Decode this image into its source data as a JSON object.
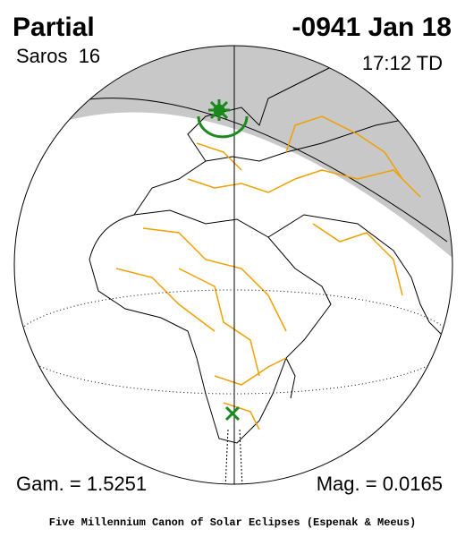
{
  "header": {
    "type": "Partial",
    "date": "-0941 Jan 18",
    "saros": "Saros  16",
    "time": "17:12 TD"
  },
  "footer": {
    "gamma": "Gam. = 1.5251",
    "magnitude": "Mag. = 0.0165",
    "credit": "Five Millennium Canon of Solar Eclipses (Espenak & Meeus)"
  }
}
